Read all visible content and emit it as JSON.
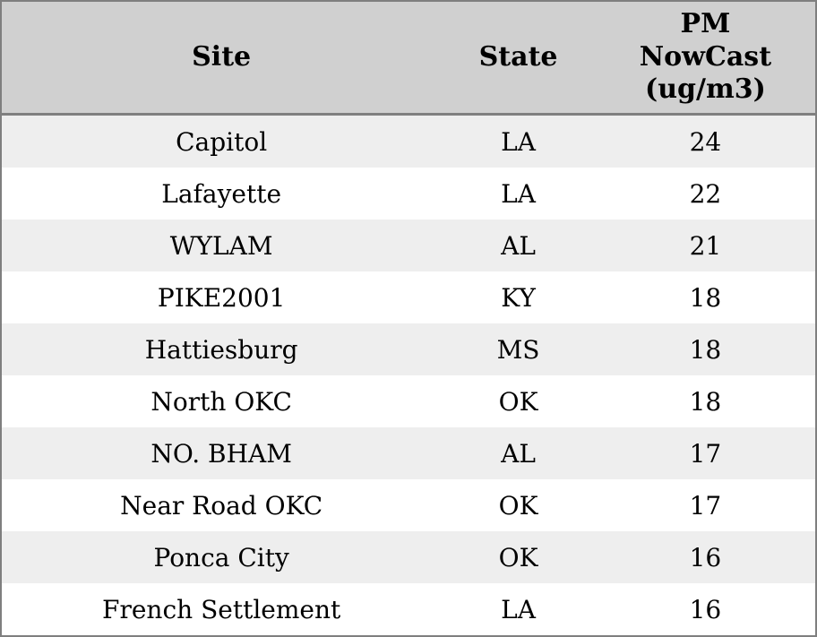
{
  "chart_data": {
    "type": "table",
    "title": "",
    "columns": [
      "Site",
      "State",
      "PM NowCast (ug/m3)"
    ],
    "rows": [
      [
        "Capitol",
        "LA",
        24
      ],
      [
        "Lafayette",
        "LA",
        22
      ],
      [
        "WYLAM",
        "AL",
        21
      ],
      [
        "PIKE2001",
        "KY",
        18
      ],
      [
        "Hattiesburg",
        "MS",
        18
      ],
      [
        "North OKC",
        "OK",
        18
      ],
      [
        "NO. BHAM",
        "AL",
        17
      ],
      [
        "Near Road OKC",
        "OK",
        17
      ],
      [
        "Ponca City",
        "OK",
        16
      ],
      [
        "French Settlement",
        "LA",
        16
      ]
    ],
    "layout": {
      "header_bg": "#d0d0d0",
      "row_alt_bg": "#eeeeee",
      "row_bg": "#ffffff",
      "border_color": "#7f7f7f",
      "text_color": "#000000",
      "alignment": "center"
    }
  }
}
